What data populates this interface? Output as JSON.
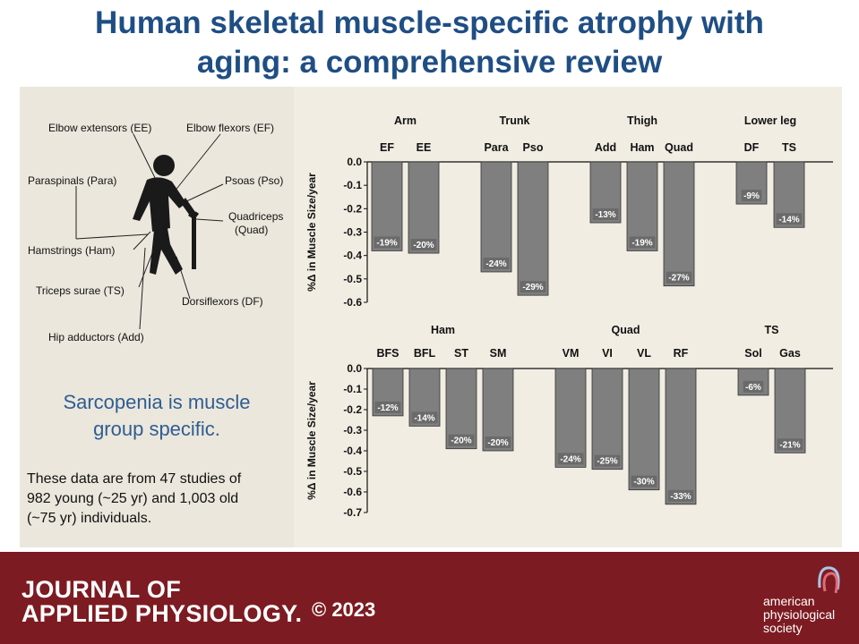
{
  "title": {
    "line1": "Human skeletal muscle-specific atrophy with",
    "line2": "aging: a comprehensive review"
  },
  "left_panel": {
    "muscle_labels": {
      "ee": "Elbow extensors (EE)",
      "ef": "Elbow flexors (EF)",
      "para": "Paraspinals (Para)",
      "pso": "Psoas (Pso)",
      "quad1": "Quadriceps",
      "quad2": "(Quad)",
      "ham": "Hamstrings (Ham)",
      "ts": "Triceps surae (TS)",
      "df": "Dorsiflexors (DF)",
      "add": "Hip adductors (Add)"
    },
    "message_line1": "Sarcopenia is muscle",
    "message_line2": "group specific.",
    "studies_line1": "These data are from 47 studies of",
    "studies_line2": "982 young (~25 yr) and 1,003 old",
    "studies_line3": "(~75 yr) individuals."
  },
  "footer": {
    "journal_line1": "JOURNAL OF",
    "journal_line2": "APPLIED PHYSIOLOGY.",
    "copyright": "© 2023",
    "publisher_line1": "american",
    "publisher_line2": "physiological",
    "publisher_line3": "society"
  },
  "colors": {
    "title": "#1f4e84",
    "bar": "#7f7f7f",
    "footer": "#7d1b22",
    "panel": "#f1ede3"
  },
  "chart_data": [
    {
      "type": "bar",
      "ylabel": "%Δ in Muscle Size/year",
      "ylim": [
        -0.6,
        0.0
      ],
      "yticks": [
        "0.0",
        "-0.1",
        "-0.2",
        "-0.3",
        "-0.4",
        "-0.5",
        "-0.6"
      ],
      "groups": [
        {
          "name": "Arm",
          "categories": [
            "EF",
            "EE"
          ],
          "values": [
            -0.38,
            -0.39
          ],
          "labels": [
            "-19%",
            "-20%"
          ]
        },
        {
          "name": "Trunk",
          "categories": [
            "Para",
            "Pso"
          ],
          "values": [
            -0.47,
            -0.57
          ],
          "labels": [
            "-24%",
            "-29%"
          ]
        },
        {
          "name": "Thigh",
          "categories": [
            "Add",
            "Ham",
            "Quad"
          ],
          "values": [
            -0.26,
            -0.38,
            -0.53
          ],
          "labels": [
            "-13%",
            "-19%",
            "-27%"
          ]
        },
        {
          "name": "Lower leg",
          "categories": [
            "DF",
            "TS"
          ],
          "values": [
            -0.18,
            -0.28
          ],
          "labels": [
            "-9%",
            "-14%"
          ]
        }
      ]
    },
    {
      "type": "bar",
      "ylabel": "%Δ in Muscle Size/year",
      "ylim": [
        -0.7,
        0.0
      ],
      "yticks": [
        "0.0",
        "-0.1",
        "-0.2",
        "-0.3",
        "-0.4",
        "-0.5",
        "-0.6",
        "-0.7"
      ],
      "groups": [
        {
          "name": "Ham",
          "categories": [
            "BFS",
            "BFL",
            "ST",
            "SM"
          ],
          "values": [
            -0.23,
            -0.28,
            -0.39,
            -0.4
          ],
          "labels": [
            "-12%",
            "-14%",
            "-20%",
            "-20%"
          ]
        },
        {
          "name": "Quad",
          "categories": [
            "VM",
            "VI",
            "VL",
            "RF"
          ],
          "values": [
            -0.48,
            -0.49,
            -0.59,
            -0.66
          ],
          "labels": [
            "-24%",
            "-25%",
            "-30%",
            "-33%"
          ]
        },
        {
          "name": "TS",
          "categories": [
            "Sol",
            "Gas"
          ],
          "values": [
            -0.13,
            -0.41
          ],
          "labels": [
            "-6%",
            "-21%"
          ]
        }
      ]
    }
  ]
}
